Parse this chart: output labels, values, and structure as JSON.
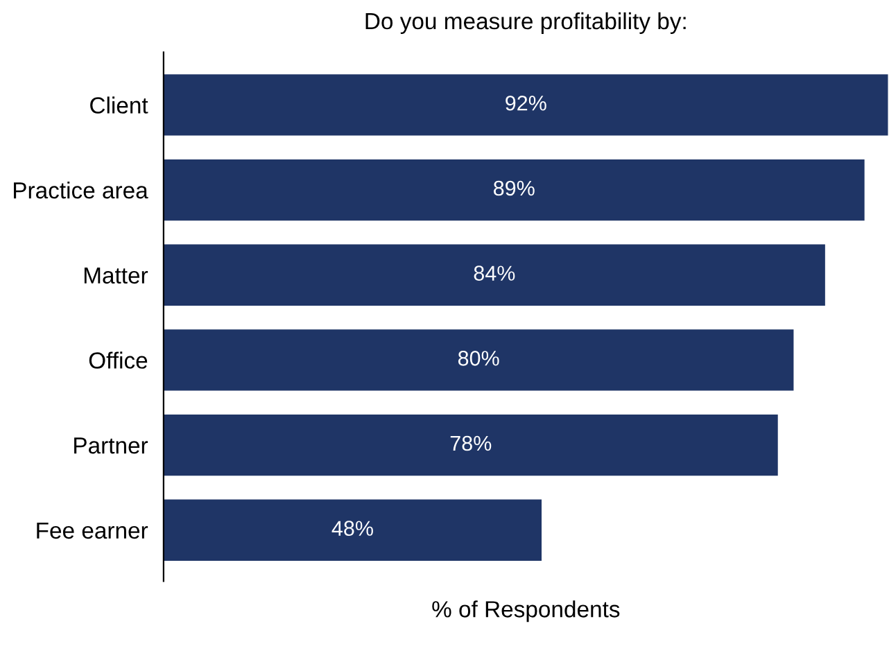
{
  "chart_data": {
    "type": "bar",
    "orientation": "horizontal",
    "title": "Do you measure profitability by:",
    "xlabel": "% of Respondents",
    "categories": [
      "Client",
      "Practice area",
      "Matter",
      "Office",
      "Partner",
      "Fee earner"
    ],
    "values": [
      92,
      89,
      84,
      80,
      78,
      48
    ],
    "value_labels": [
      "92%",
      "89%",
      "84%",
      "80%",
      "78%",
      "48%"
    ],
    "color": "#1f3566",
    "tick_labels": "y",
    "grid": false,
    "legend": false
  }
}
